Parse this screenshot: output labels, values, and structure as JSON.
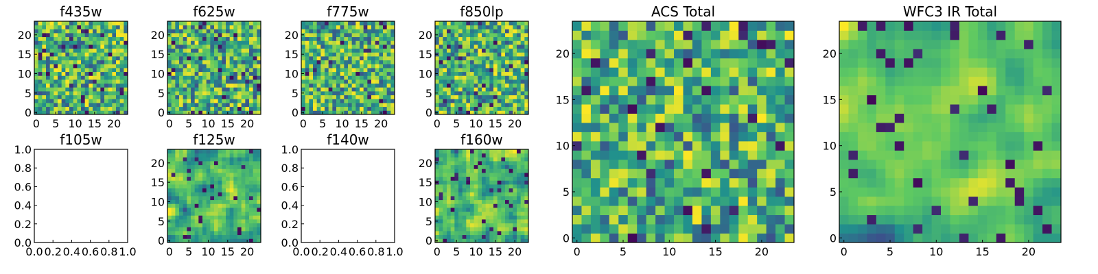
{
  "chart_data": [
    {
      "id": "f435w",
      "type": "heatmap",
      "title": "f435w",
      "empty": false,
      "grid": [
        24,
        24
      ],
      "seed": 11,
      "smooth": 0,
      "dark": 0.05,
      "xticks": [
        "0",
        "5",
        "10",
        "15",
        "20"
      ],
      "yticks": [
        "0",
        "5",
        "10",
        "15",
        "20"
      ]
    },
    {
      "id": "f625w",
      "type": "heatmap",
      "title": "f625w",
      "empty": false,
      "grid": [
        24,
        24
      ],
      "seed": 23,
      "smooth": 0,
      "dark": 0.04,
      "xticks": [
        "0",
        "5",
        "10",
        "15",
        "20"
      ],
      "yticks": [
        "0",
        "5",
        "10",
        "15",
        "20"
      ]
    },
    {
      "id": "f775w",
      "type": "heatmap",
      "title": "f775w",
      "empty": false,
      "grid": [
        24,
        24
      ],
      "seed": 37,
      "smooth": 0,
      "dark": 0.03,
      "xticks": [
        "0",
        "5",
        "10",
        "15",
        "20"
      ],
      "yticks": [
        "0",
        "5",
        "10",
        "15",
        "20"
      ]
    },
    {
      "id": "f850lp",
      "type": "heatmap",
      "title": "f850lp",
      "empty": false,
      "grid": [
        24,
        24
      ],
      "seed": 41,
      "smooth": 0,
      "dark": 0.04,
      "xticks": [
        "0",
        "5",
        "10",
        "15",
        "20"
      ],
      "yticks": [
        "0",
        "5",
        "10",
        "15",
        "20"
      ]
    },
    {
      "id": "f105w",
      "type": "heatmap",
      "title": "f105w",
      "empty": true,
      "xlim": [
        0,
        1
      ],
      "ylim": [
        0,
        1
      ],
      "xticks": [
        "0.0",
        "0.2",
        "0.4",
        "0.6",
        "0.8",
        "1.0"
      ],
      "yticks": [
        "0.0",
        "0.2",
        "0.4",
        "0.6",
        "0.8",
        "1.0"
      ]
    },
    {
      "id": "f125w",
      "type": "heatmap",
      "title": "f125w",
      "empty": false,
      "grid": [
        24,
        24
      ],
      "seed": 53,
      "smooth": 1,
      "dark": 0.05,
      "xticks": [
        "0",
        "5",
        "10",
        "15",
        "20"
      ],
      "yticks": [
        "0",
        "5",
        "10",
        "15",
        "20"
      ]
    },
    {
      "id": "f140w",
      "type": "heatmap",
      "title": "f140w",
      "empty": true,
      "xlim": [
        0,
        1
      ],
      "ylim": [
        0,
        1
      ],
      "xticks": [
        "0.0",
        "0.2",
        "0.4",
        "0.6",
        "0.8",
        "1.0"
      ],
      "yticks": [
        "0.0",
        "0.2",
        "0.4",
        "0.6",
        "0.8",
        "1.0"
      ]
    },
    {
      "id": "f160w",
      "type": "heatmap",
      "title": "f160w",
      "empty": false,
      "grid": [
        24,
        24
      ],
      "seed": 67,
      "smooth": 1,
      "dark": 0.06,
      "xticks": [
        "0",
        "5",
        "10",
        "15",
        "20"
      ],
      "yticks": [
        "0",
        "5",
        "10",
        "15",
        "20"
      ]
    },
    {
      "id": "acs-total",
      "type": "heatmap",
      "title": "ACS Total",
      "empty": false,
      "grid": [
        24,
        24
      ],
      "seed": 79,
      "smooth": 0,
      "dark": 0.03,
      "xticks": [
        "0",
        "5",
        "10",
        "15",
        "20"
      ],
      "yticks": [
        "0",
        "5",
        "10",
        "15",
        "20"
      ]
    },
    {
      "id": "wfc3-ir-total",
      "type": "heatmap",
      "title": "WFC3 IR Total",
      "empty": false,
      "grid": [
        24,
        24
      ],
      "seed": 97,
      "smooth": 2,
      "dark": 0.05,
      "xticks": [
        "0",
        "5",
        "10",
        "15",
        "20"
      ],
      "yticks": [
        "0",
        "5",
        "10",
        "15",
        "20"
      ]
    }
  ],
  "colors": {
    "background": "#ffffff",
    "frame": "#000000",
    "colormap": [
      "#440154",
      "#3b528b",
      "#21918c",
      "#5ec962",
      "#fde725"
    ]
  }
}
